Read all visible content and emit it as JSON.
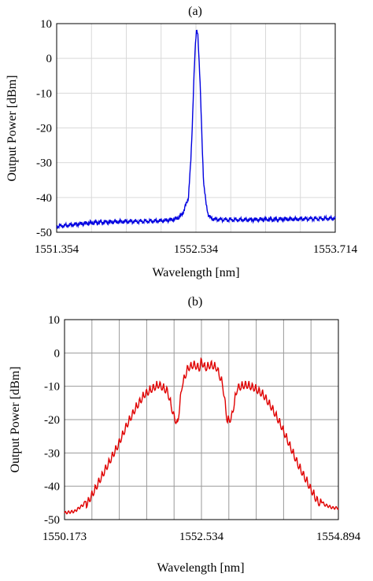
{
  "chart_data": [
    {
      "type": "line",
      "title": "(a)",
      "xlabel": "Wavelength [nm]",
      "ylabel": "Output Power [dBm]",
      "xlim": [
        1551.354,
        1553.714
      ],
      "ylim": [
        -50,
        10
      ],
      "xticks": [
        "1551.354",
        "1552.534",
        "1553.714"
      ],
      "yticks": [
        "10",
        "0",
        "-10",
        "-20",
        "-30",
        "-40",
        "-50"
      ],
      "grid": true,
      "color": "#0000e0",
      "series": [
        {
          "x": [
            1551.354,
            1551.45,
            1551.55,
            1551.65,
            1551.75,
            1551.85,
            1551.95,
            1552.05,
            1552.15,
            1552.25,
            1552.35,
            1552.4,
            1552.43,
            1552.45,
            1552.47,
            1552.48,
            1552.49,
            1552.5,
            1552.51,
            1552.52,
            1552.53,
            1552.54,
            1552.55,
            1552.56,
            1552.57,
            1552.58,
            1552.59,
            1552.6,
            1552.62,
            1552.64,
            1552.66,
            1552.7,
            1552.8,
            1552.9,
            1553.0,
            1553.1,
            1553.2,
            1553.3,
            1553.4,
            1553.5,
            1553.6,
            1553.714
          ],
          "y": [
            -48.3,
            -48.0,
            -47.6,
            -47.3,
            -47.1,
            -47.0,
            -46.9,
            -46.9,
            -46.8,
            -46.7,
            -46.3,
            -45.5,
            -44.0,
            -42.0,
            -40.0,
            -35.0,
            -30.0,
            -22.0,
            -12.0,
            -3.0,
            4.0,
            8.5,
            7.0,
            0.0,
            -8.0,
            -18.0,
            -28.0,
            -36.0,
            -42.0,
            -45.0,
            -46.0,
            -46.3,
            -46.4,
            -46.4,
            -46.4,
            -46.3,
            -46.3,
            -46.2,
            -46.2,
            -46.1,
            -46.1,
            -46.0
          ]
        }
      ]
    },
    {
      "type": "line",
      "title": "(b)",
      "xlabel": "Wavelength [nm]",
      "ylabel": "Output Power [dBm]",
      "xlim": [
        1550.173,
        1554.894
      ],
      "ylim": [
        -50,
        10
      ],
      "xticks": [
        "1550.173",
        "1552.534",
        "1554.894"
      ],
      "yticks": [
        "10",
        "0",
        "-10",
        "-20",
        "-30",
        "-40",
        "-50"
      ],
      "grid": true,
      "color": "#e00000",
      "series": [
        {
          "x": [
            1550.173,
            1550.35,
            1550.5,
            1550.65,
            1550.8,
            1550.95,
            1551.1,
            1551.25,
            1551.4,
            1551.55,
            1551.7,
            1551.8,
            1551.95,
            1552.05,
            1552.12,
            1552.2,
            1552.3,
            1552.4,
            1552.5,
            1552.534,
            1552.6,
            1552.7,
            1552.8,
            1552.9,
            1552.98,
            1553.05,
            1553.15,
            1553.3,
            1553.45,
            1553.6,
            1553.75,
            1553.9,
            1554.05,
            1554.2,
            1554.35,
            1554.5,
            1554.65,
            1554.8,
            1554.894
          ],
          "y": [
            -48.0,
            -47.5,
            -45.5,
            -41.0,
            -36.0,
            -31.0,
            -26.0,
            -20.0,
            -15.0,
            -11.0,
            -9.0,
            -8.0,
            -10.0,
            -17.0,
            -20.0,
            -8.0,
            -3.0,
            -2.0,
            -3.0,
            -1.0,
            -3.0,
            -2.0,
            -3.0,
            -8.0,
            -19.0,
            -18.0,
            -9.0,
            -8.0,
            -9.0,
            -11.0,
            -15.0,
            -20.0,
            -26.0,
            -32.0,
            -37.0,
            -42.0,
            -45.5,
            -46.5,
            -46.5
          ]
        }
      ]
    }
  ]
}
